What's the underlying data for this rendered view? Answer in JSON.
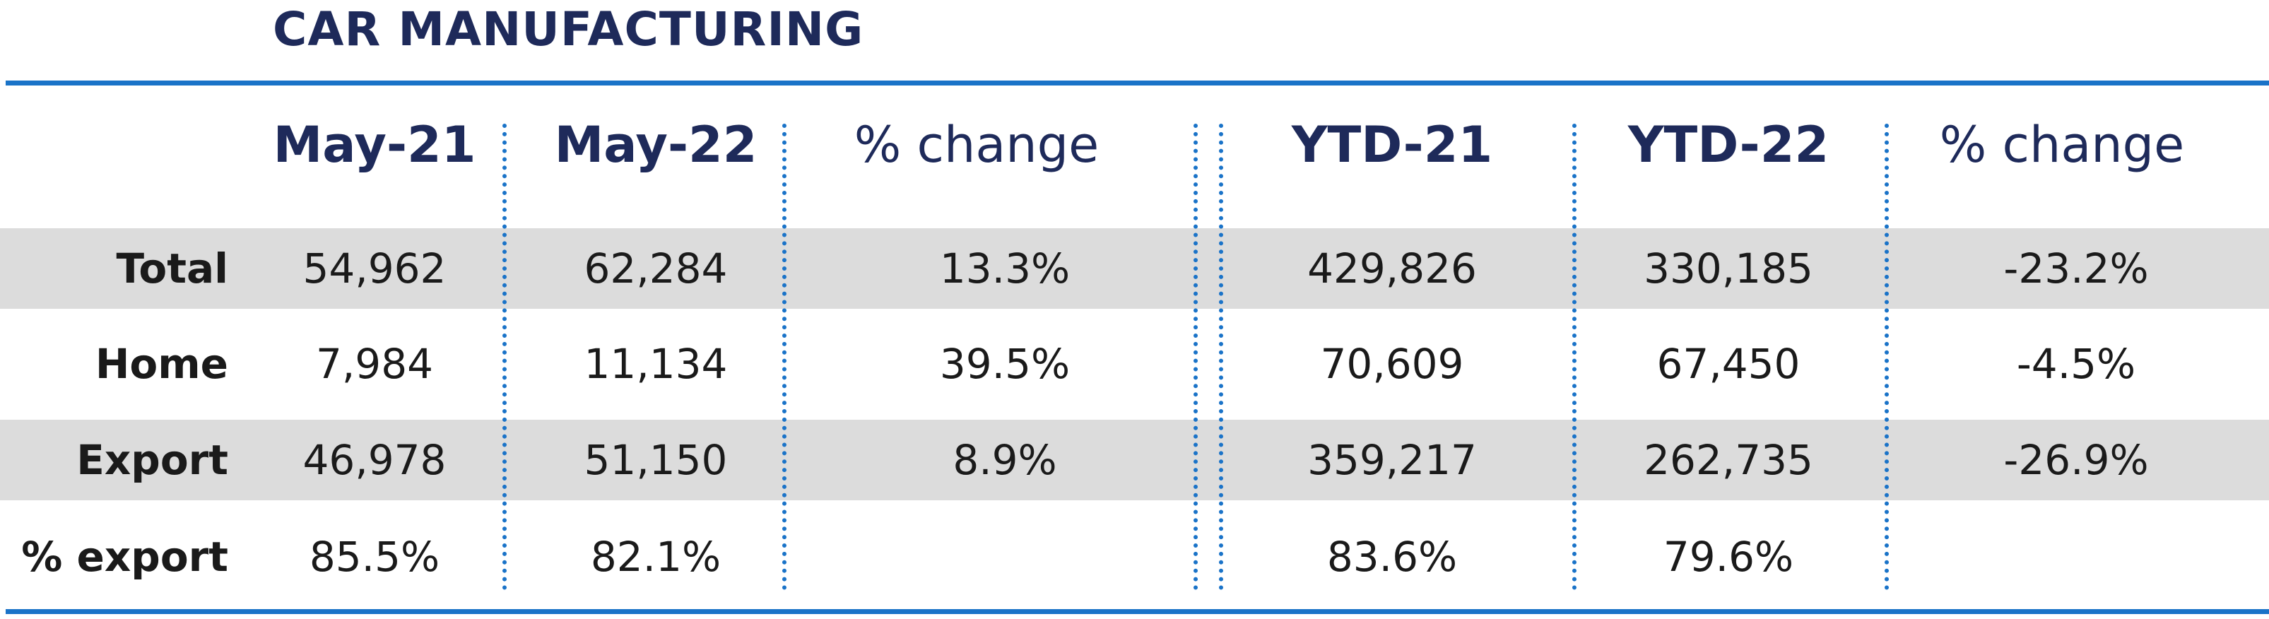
{
  "title": "CAR MANUFACTURING",
  "colors": {
    "title": "#1e2a5a",
    "rule": "#1a73c8",
    "band": "#dcdcdc",
    "text": "#1a1a1a"
  },
  "chart_data": {
    "type": "table",
    "title": "CAR MANUFACTURING",
    "columns": [
      "May-21",
      "May-22",
      "% change",
      "YTD-21",
      "YTD-22",
      "% change"
    ],
    "rows": [
      {
        "label": "Total",
        "values": [
          "54,962",
          "62,284",
          "13.3%",
          "429,826",
          "330,185",
          "-23.2%"
        ]
      },
      {
        "label": "Home",
        "values": [
          "7,984",
          "11,134",
          "39.5%",
          "70,609",
          "67,450",
          "-4.5%"
        ]
      },
      {
        "label": "Export",
        "values": [
          "46,978",
          "51,150",
          "8.9%",
          "359,217",
          "262,735",
          "-26.9%"
        ]
      },
      {
        "label": "% export",
        "values": [
          "85.5%",
          "82.1%",
          "",
          "83.6%",
          "79.6%",
          ""
        ]
      }
    ]
  }
}
